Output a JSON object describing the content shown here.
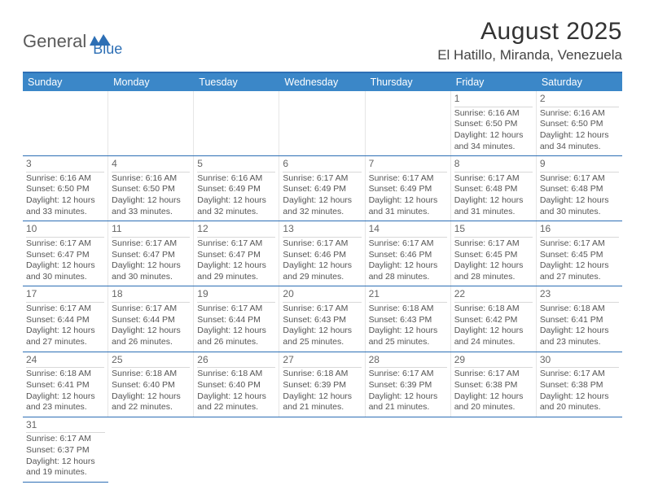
{
  "logo": {
    "text1": "General",
    "text2": "Blue"
  },
  "title": "August 2025",
  "location": "El Hatillo, Miranda, Venezuela",
  "colors": {
    "header_bg": "#3b87c8",
    "border": "#2d6fb5",
    "text": "#555555",
    "day_num": "#666666"
  },
  "weekdays": [
    "Sunday",
    "Monday",
    "Tuesday",
    "Wednesday",
    "Thursday",
    "Friday",
    "Saturday"
  ],
  "weeks": [
    [
      null,
      null,
      null,
      null,
      null,
      {
        "n": "1",
        "sr": "Sunrise: 6:16 AM",
        "ss": "Sunset: 6:50 PM",
        "d1": "Daylight: 12 hours",
        "d2": "and 34 minutes."
      },
      {
        "n": "2",
        "sr": "Sunrise: 6:16 AM",
        "ss": "Sunset: 6:50 PM",
        "d1": "Daylight: 12 hours",
        "d2": "and 34 minutes."
      }
    ],
    [
      {
        "n": "3",
        "sr": "Sunrise: 6:16 AM",
        "ss": "Sunset: 6:50 PM",
        "d1": "Daylight: 12 hours",
        "d2": "and 33 minutes."
      },
      {
        "n": "4",
        "sr": "Sunrise: 6:16 AM",
        "ss": "Sunset: 6:50 PM",
        "d1": "Daylight: 12 hours",
        "d2": "and 33 minutes."
      },
      {
        "n": "5",
        "sr": "Sunrise: 6:16 AM",
        "ss": "Sunset: 6:49 PM",
        "d1": "Daylight: 12 hours",
        "d2": "and 32 minutes."
      },
      {
        "n": "6",
        "sr": "Sunrise: 6:17 AM",
        "ss": "Sunset: 6:49 PM",
        "d1": "Daylight: 12 hours",
        "d2": "and 32 minutes."
      },
      {
        "n": "7",
        "sr": "Sunrise: 6:17 AM",
        "ss": "Sunset: 6:49 PM",
        "d1": "Daylight: 12 hours",
        "d2": "and 31 minutes."
      },
      {
        "n": "8",
        "sr": "Sunrise: 6:17 AM",
        "ss": "Sunset: 6:48 PM",
        "d1": "Daylight: 12 hours",
        "d2": "and 31 minutes."
      },
      {
        "n": "9",
        "sr": "Sunrise: 6:17 AM",
        "ss": "Sunset: 6:48 PM",
        "d1": "Daylight: 12 hours",
        "d2": "and 30 minutes."
      }
    ],
    [
      {
        "n": "10",
        "sr": "Sunrise: 6:17 AM",
        "ss": "Sunset: 6:47 PM",
        "d1": "Daylight: 12 hours",
        "d2": "and 30 minutes."
      },
      {
        "n": "11",
        "sr": "Sunrise: 6:17 AM",
        "ss": "Sunset: 6:47 PM",
        "d1": "Daylight: 12 hours",
        "d2": "and 30 minutes."
      },
      {
        "n": "12",
        "sr": "Sunrise: 6:17 AM",
        "ss": "Sunset: 6:47 PM",
        "d1": "Daylight: 12 hours",
        "d2": "and 29 minutes."
      },
      {
        "n": "13",
        "sr": "Sunrise: 6:17 AM",
        "ss": "Sunset: 6:46 PM",
        "d1": "Daylight: 12 hours",
        "d2": "and 29 minutes."
      },
      {
        "n": "14",
        "sr": "Sunrise: 6:17 AM",
        "ss": "Sunset: 6:46 PM",
        "d1": "Daylight: 12 hours",
        "d2": "and 28 minutes."
      },
      {
        "n": "15",
        "sr": "Sunrise: 6:17 AM",
        "ss": "Sunset: 6:45 PM",
        "d1": "Daylight: 12 hours",
        "d2": "and 28 minutes."
      },
      {
        "n": "16",
        "sr": "Sunrise: 6:17 AM",
        "ss": "Sunset: 6:45 PM",
        "d1": "Daylight: 12 hours",
        "d2": "and 27 minutes."
      }
    ],
    [
      {
        "n": "17",
        "sr": "Sunrise: 6:17 AM",
        "ss": "Sunset: 6:44 PM",
        "d1": "Daylight: 12 hours",
        "d2": "and 27 minutes."
      },
      {
        "n": "18",
        "sr": "Sunrise: 6:17 AM",
        "ss": "Sunset: 6:44 PM",
        "d1": "Daylight: 12 hours",
        "d2": "and 26 minutes."
      },
      {
        "n": "19",
        "sr": "Sunrise: 6:17 AM",
        "ss": "Sunset: 6:44 PM",
        "d1": "Daylight: 12 hours",
        "d2": "and 26 minutes."
      },
      {
        "n": "20",
        "sr": "Sunrise: 6:17 AM",
        "ss": "Sunset: 6:43 PM",
        "d1": "Daylight: 12 hours",
        "d2": "and 25 minutes."
      },
      {
        "n": "21",
        "sr": "Sunrise: 6:18 AM",
        "ss": "Sunset: 6:43 PM",
        "d1": "Daylight: 12 hours",
        "d2": "and 25 minutes."
      },
      {
        "n": "22",
        "sr": "Sunrise: 6:18 AM",
        "ss": "Sunset: 6:42 PM",
        "d1": "Daylight: 12 hours",
        "d2": "and 24 minutes."
      },
      {
        "n": "23",
        "sr": "Sunrise: 6:18 AM",
        "ss": "Sunset: 6:41 PM",
        "d1": "Daylight: 12 hours",
        "d2": "and 23 minutes."
      }
    ],
    [
      {
        "n": "24",
        "sr": "Sunrise: 6:18 AM",
        "ss": "Sunset: 6:41 PM",
        "d1": "Daylight: 12 hours",
        "d2": "and 23 minutes."
      },
      {
        "n": "25",
        "sr": "Sunrise: 6:18 AM",
        "ss": "Sunset: 6:40 PM",
        "d1": "Daylight: 12 hours",
        "d2": "and 22 minutes."
      },
      {
        "n": "26",
        "sr": "Sunrise: 6:18 AM",
        "ss": "Sunset: 6:40 PM",
        "d1": "Daylight: 12 hours",
        "d2": "and 22 minutes."
      },
      {
        "n": "27",
        "sr": "Sunrise: 6:18 AM",
        "ss": "Sunset: 6:39 PM",
        "d1": "Daylight: 12 hours",
        "d2": "and 21 minutes."
      },
      {
        "n": "28",
        "sr": "Sunrise: 6:17 AM",
        "ss": "Sunset: 6:39 PM",
        "d1": "Daylight: 12 hours",
        "d2": "and 21 minutes."
      },
      {
        "n": "29",
        "sr": "Sunrise: 6:17 AM",
        "ss": "Sunset: 6:38 PM",
        "d1": "Daylight: 12 hours",
        "d2": "and 20 minutes."
      },
      {
        "n": "30",
        "sr": "Sunrise: 6:17 AM",
        "ss": "Sunset: 6:38 PM",
        "d1": "Daylight: 12 hours",
        "d2": "and 20 minutes."
      }
    ],
    [
      {
        "n": "31",
        "sr": "Sunrise: 6:17 AM",
        "ss": "Sunset: 6:37 PM",
        "d1": "Daylight: 12 hours",
        "d2": "and 19 minutes."
      },
      null,
      null,
      null,
      null,
      null,
      null
    ]
  ]
}
